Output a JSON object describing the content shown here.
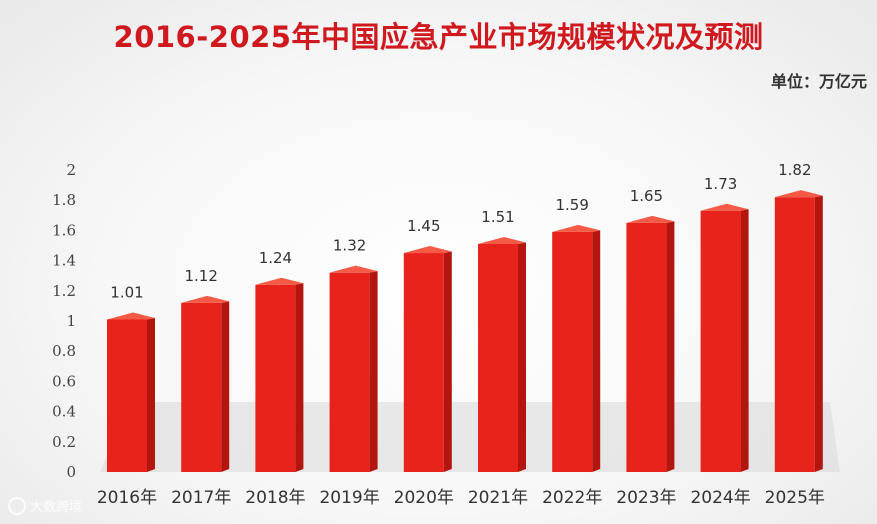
{
  "title": "2016-2025年中国应急产业市场规模状况及预测",
  "unit_label": "单位：万亿元",
  "watermark": "大数跨境",
  "colors": {
    "bar_front": "#e8231c",
    "bar_side": "#b3150f",
    "bar_top": "#f45a45",
    "title": "#d0191e"
  },
  "chart_data": {
    "type": "bar",
    "title": "2016-2025年中国应急产业市场规模状况及预测",
    "xlabel": "",
    "ylabel": "",
    "unit": "万亿元",
    "categories": [
      "2016年",
      "2017年",
      "2018年",
      "2019年",
      "2020年",
      "2021年",
      "2022年",
      "2023年",
      "2024年",
      "2025年"
    ],
    "values": [
      1.01,
      1.12,
      1.24,
      1.32,
      1.45,
      1.51,
      1.59,
      1.65,
      1.73,
      1.82
    ],
    "data_labels": [
      "1.01",
      "1.12",
      "1.24",
      "1.32",
      "1.45",
      "1.51",
      "1.59",
      "1.65",
      "1.73",
      "1.82"
    ],
    "yticks": [
      "0",
      "0.2",
      "0.4",
      "0.6",
      "0.8",
      "1",
      "1.2",
      "1.4",
      "1.6",
      "1.8",
      "2"
    ],
    "ylim": [
      0,
      2
    ],
    "grid": false,
    "legend": "none"
  }
}
